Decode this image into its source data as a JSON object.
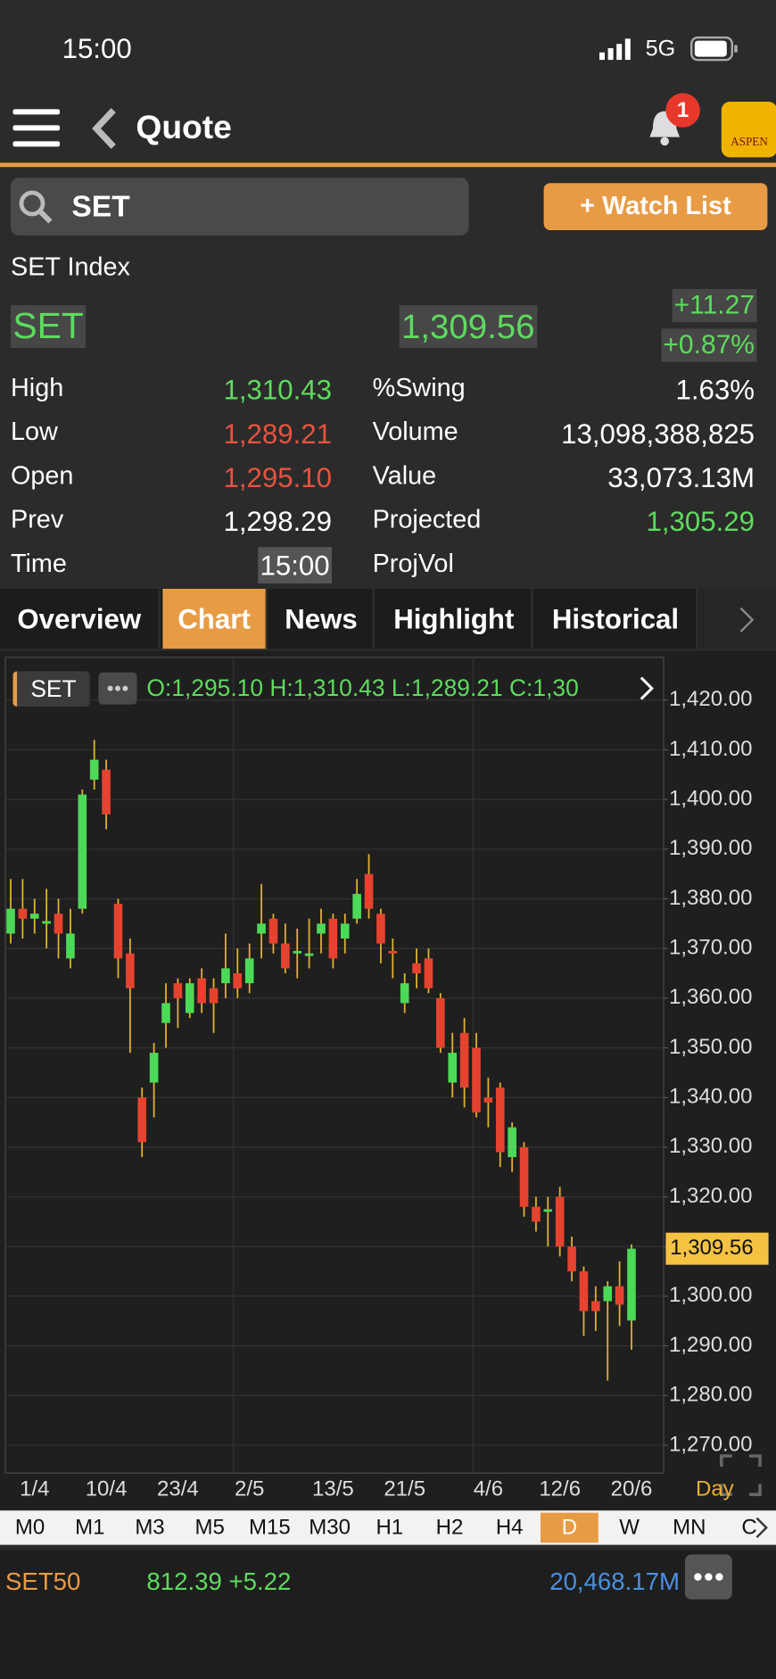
{
  "status_bar": {
    "time": "15:00",
    "network": "5G"
  },
  "header": {
    "title": "Quote",
    "notification_count": "1",
    "logo": "ASPEN"
  },
  "search": {
    "query": "SET",
    "watch_list_button": "+ Watch List"
  },
  "quote": {
    "name": "SET Index",
    "symbol": "SET",
    "price": "1,309.56",
    "change": "+11.27",
    "change_percent": "+0.87%",
    "stats_left": [
      {
        "label": "High",
        "value": "1,310.43",
        "color": "#5edb5e"
      },
      {
        "label": "Low",
        "value": "1,289.21",
        "color": "#e5533f"
      },
      {
        "label": "Open",
        "value": "1,295.10",
        "color": "#e5533f"
      },
      {
        "label": "Prev",
        "value": "1,298.29",
        "color": "#ffffff"
      },
      {
        "label": "Time",
        "value": "15:00",
        "color": "#ffffff",
        "boxed": true
      }
    ],
    "stats_right": [
      {
        "label": "%Swing",
        "value": "1.63%",
        "color": "#ffffff"
      },
      {
        "label": "Volume",
        "value": "13,098,388,825",
        "color": "#ffffff"
      },
      {
        "label": "Value",
        "value": "33,073.13M",
        "color": "#ffffff"
      },
      {
        "label": "Projected",
        "value": "1,305.29",
        "color": "#5edb5e"
      },
      {
        "label": "ProjVol"
      }
    ]
  },
  "tabs": [
    "Overview",
    "Chart",
    "News",
    "Highlight",
    "Historical"
  ],
  "active_tab": 1,
  "chart_data": {
    "type": "candlestick",
    "symbol": "SET",
    "ohlc_text": "O:1,295.10 H:1,310.43 L:1,289.21 C:1,30",
    "categories": [
      null,
      null,
      "1/4",
      null,
      null,
      null,
      null,
      null,
      "10/4",
      null,
      null,
      null,
      null,
      null,
      "23/4",
      null,
      null,
      null,
      null,
      null,
      "2/5",
      null,
      null,
      null,
      null,
      null,
      null,
      "13/5",
      null,
      null,
      null,
      null,
      null,
      "21/5",
      null,
      null,
      null,
      null,
      null,
      null,
      "4/6",
      null,
      null,
      null,
      null,
      null,
      "12/6",
      null,
      null,
      null,
      null,
      null,
      "20/6"
    ],
    "open": [
      1373,
      1378,
      1376,
      1375,
      1377,
      1368,
      1378,
      1404,
      1406,
      1379,
      1369,
      1340,
      1343,
      1355,
      1363,
      1357,
      1364,
      1362,
      1363,
      1365,
      1363,
      1373,
      1376,
      1371,
      1369,
      1368.5,
      1373,
      1376,
      1372,
      1376,
      1385,
      1377,
      1369.5,
      1359,
      1367,
      1368,
      1360,
      1343,
      1353,
      1350,
      1340,
      1342,
      1328,
      1330,
      1318,
      1317,
      1320,
      1310,
      1305,
      1299,
      1299,
      1302,
      1295.1
    ],
    "high": [
      1384,
      1384,
      1380,
      1382,
      1380,
      1378,
      1402,
      1412,
      1408,
      1380,
      1372,
      1342,
      1351,
      1363,
      1364,
      1364,
      1366,
      1364,
      1373,
      1370,
      1371,
      1383,
      1377,
      1375,
      1374,
      1376,
      1378,
      1377,
      1377,
      1384,
      1389,
      1378,
      1372,
      1365,
      1370,
      1370,
      1361,
      1353,
      1356,
      1353,
      1344,
      1343,
      1335,
      1331,
      1320,
      1320,
      1322,
      1312,
      1306,
      1302,
      1303,
      1307,
      1310.43
    ],
    "low": [
      1371,
      1372,
      1373,
      1370,
      1368,
      1366,
      1377,
      1402,
      1394,
      1364,
      1349,
      1328,
      1336,
      1350,
      1354,
      1356,
      1357,
      1353,
      1360,
      1360,
      1361,
      1368,
      1369,
      1365,
      1364,
      1366,
      1369,
      1366,
      1369,
      1375,
      1376,
      1367,
      1364,
      1357,
      1362,
      1361,
      1349,
      1340,
      1338,
      1336,
      1334,
      1326,
      1325,
      1316,
      1313,
      1310,
      1308,
      1303,
      1292,
      1293,
      1283,
      1294,
      1289.21
    ],
    "close": [
      1378,
      1376,
      1377,
      1375.5,
      1373,
      1373,
      1401,
      1408,
      1397,
      1368,
      1362,
      1331,
      1349,
      1359,
      1360,
      1363,
      1359,
      1359,
      1366,
      1362,
      1368,
      1375,
      1371,
      1366,
      1369.5,
      1369,
      1375,
      1368,
      1375,
      1381,
      1378,
      1371,
      1369,
      1363,
      1365,
      1362,
      1350,
      1349,
      1342,
      1337,
      1339,
      1329,
      1334,
      1318,
      1315,
      1317.5,
      1310,
      1305,
      1297,
      1297,
      1302,
      1298.29,
      1309.56
    ],
    "up_color": "#4cd957",
    "down_color": "#e5432f",
    "wick_color": "#e0b030",
    "ylim": [
      1264.6,
      1428.4
    ],
    "yticks": [
      {
        "value": 1270,
        "label": "1,270.00"
      },
      {
        "value": 1280,
        "label": "1,280.00"
      },
      {
        "value": 1290,
        "label": "1,290.00"
      },
      {
        "value": 1300,
        "label": "1,300.00"
      },
      {
        "value": 1310,
        "label": "1,310.00"
      },
      {
        "value": 1320,
        "label": "1,320.00"
      },
      {
        "value": 1330,
        "label": "1,330.00"
      },
      {
        "value": 1340,
        "label": "1,340.00"
      },
      {
        "value": 1350,
        "label": "1,350.00"
      },
      {
        "value": 1360,
        "label": "1,360.00"
      },
      {
        "value": 1370,
        "label": "1,370.00"
      },
      {
        "value": 1380,
        "label": "1,380.00"
      },
      {
        "value": 1390,
        "label": "1,390.00"
      },
      {
        "value": 1400,
        "label": "1,400.00"
      },
      {
        "value": 1410,
        "label": "1,410.00"
      },
      {
        "value": 1420,
        "label": "1,420.00"
      }
    ],
    "last_price": {
      "value": 1309.56,
      "label": "1,309.56"
    },
    "grid": true,
    "interval_label": "Day"
  },
  "timeframes": [
    "M0",
    "M1",
    "M3",
    "M5",
    "M15",
    "M30",
    "H1",
    "H2",
    "H4",
    "D",
    "W",
    "MN",
    "C"
  ],
  "active_timeframe": 9,
  "ticker": {
    "symbol": "SET50",
    "value": "812.39 +5.22",
    "turnover": "20,468.17M"
  }
}
